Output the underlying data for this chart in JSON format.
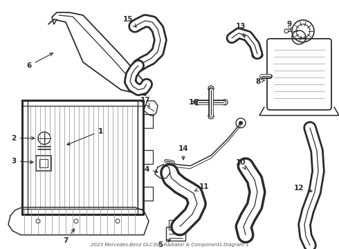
{
  "title": "2023 Mercedes-Benz GLC300 Radiator & Components Diagram 1",
  "bg_color": "#ffffff",
  "line_color": "#2a2a2a",
  "figsize": [
    4.9,
    3.6
  ],
  "dpi": 100,
  "xlim": [
    0,
    490
  ],
  "ylim": [
    0,
    360
  ]
}
